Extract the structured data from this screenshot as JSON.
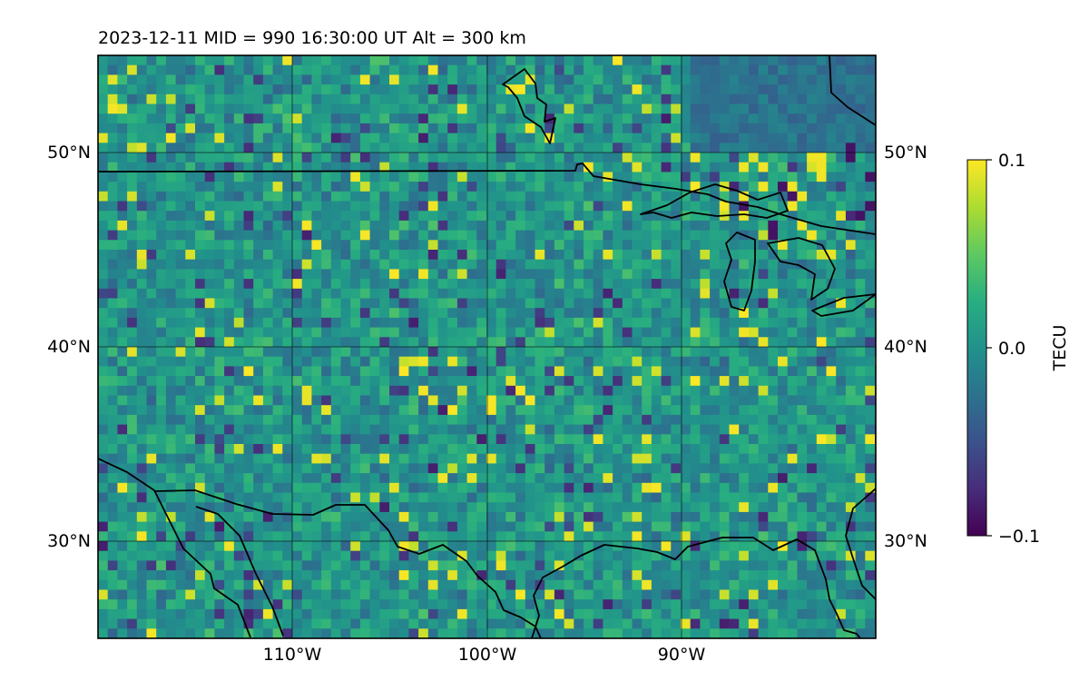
{
  "title": "2023-12-11  MID = 990    16:30:00  UT  Alt = 300 km",
  "map": {
    "lon_range": [
      -120,
      -80
    ],
    "lat_range": [
      25,
      55
    ],
    "lat_ticks": [
      {
        "value": 50,
        "label": "50°N"
      },
      {
        "value": 40,
        "label": "40°N"
      },
      {
        "value": 30,
        "label": "30°N"
      }
    ],
    "lon_ticks": [
      {
        "value": -110,
        "label": "110°W"
      },
      {
        "value": -100,
        "label": "100°W"
      },
      {
        "value": -90,
        "label": "90°W"
      }
    ],
    "gridlines": true
  },
  "colorbar": {
    "label": "TECU",
    "colormap": "viridis",
    "min": -0.1,
    "max": 0.1,
    "ticks": [
      {
        "value": 0.1,
        "label": "0.1"
      },
      {
        "value": 0.0,
        "label": "0.0"
      },
      {
        "value": -0.1,
        "label": "−0.1"
      }
    ]
  },
  "colors": {
    "viridis_low": "#440154",
    "viridis_mid": "#21918c",
    "viridis_high": "#fde725"
  }
}
